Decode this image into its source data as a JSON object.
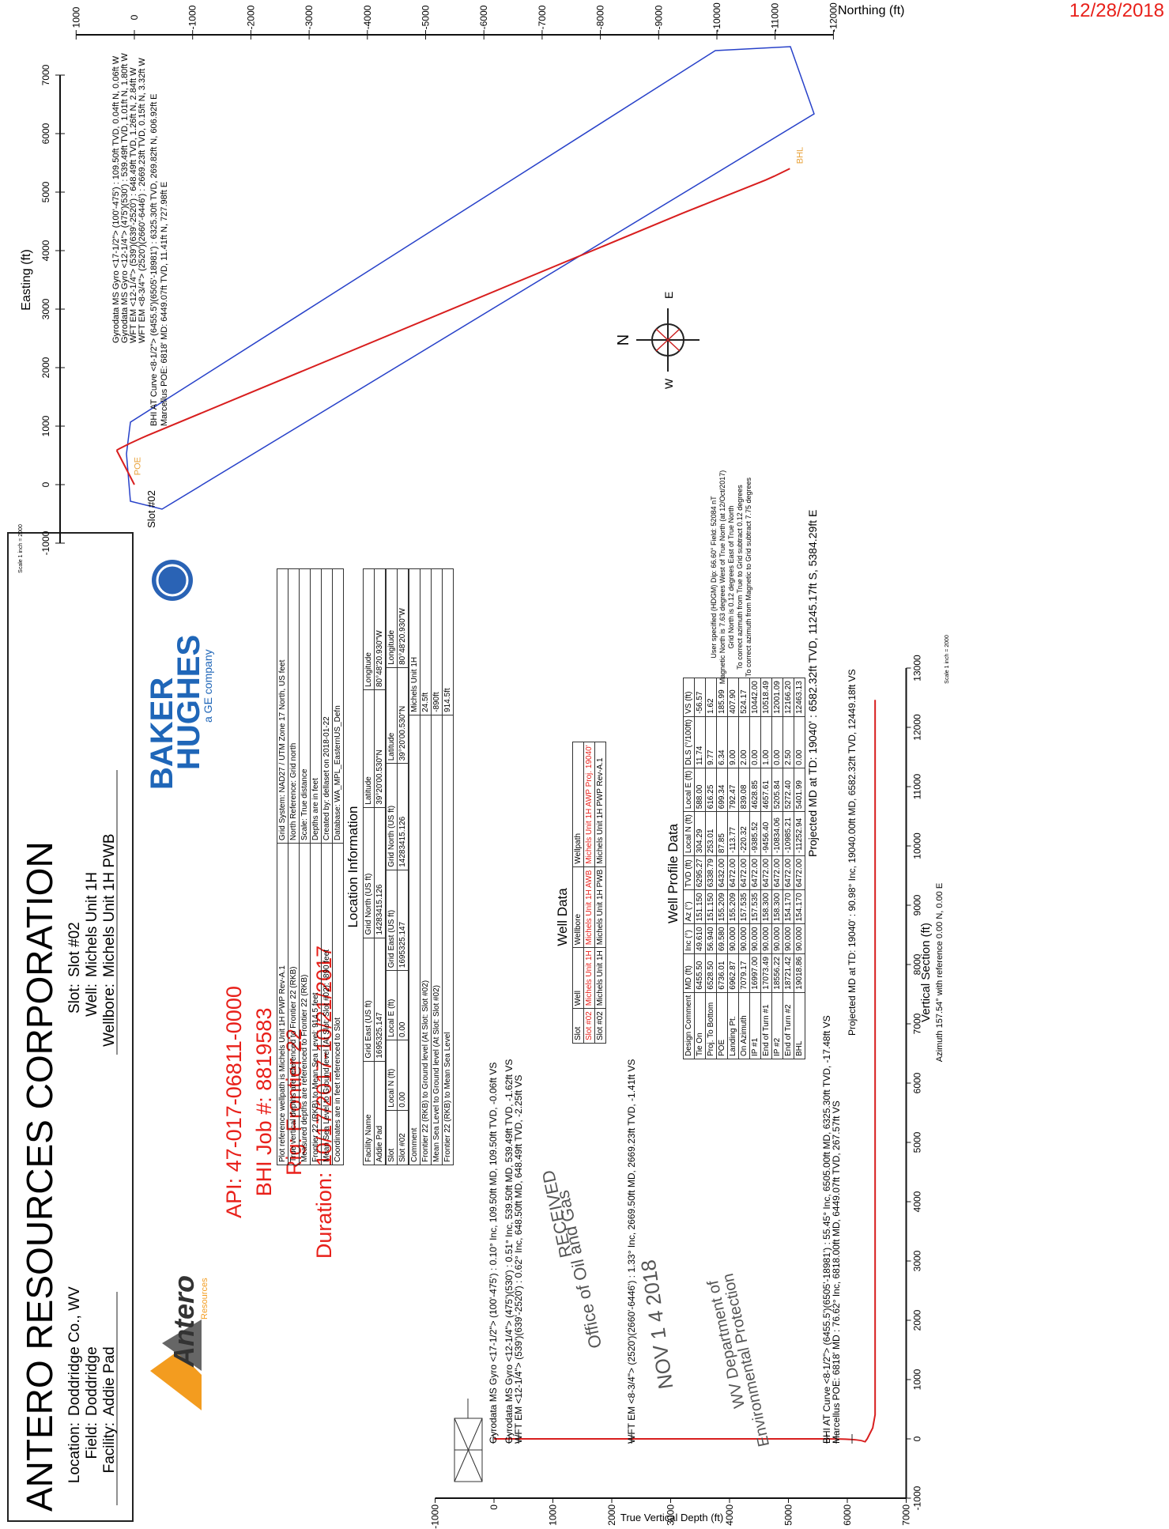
{
  "header": {
    "title": "ANTERO RESOURCES CORPORATION",
    "left": [
      [
        "Location:",
        "Doddridge Co., WV"
      ],
      [
        "Field:",
        "Doddridge"
      ],
      [
        "Facility:",
        "Addie Pad"
      ]
    ],
    "right": [
      [
        "Slot:",
        "Slot #02"
      ],
      [
        "Well:",
        "Michels Unit 1H"
      ],
      [
        "Wellbore:",
        "Michels Unit 1H PWB"
      ]
    ]
  },
  "logos": {
    "antero": [
      "Antero",
      "Resources"
    ],
    "baker_hughes": [
      "BAKER",
      "HUGHES",
      "a GE company"
    ]
  },
  "job": [
    "API: 47-017-06811-0000",
    "BHI Job #: 8819583",
    "Rig: Frontier 22",
    "Duration: 10/17/2017-10/21/2017"
  ],
  "notes_table": [
    [
      "Plot reference wellpath is Michels Unit 1H PWP Rev-A.1",
      "Grid System: NAD27 / UTM Zone 17 North, US feet"
    ],
    [
      "True vertical depths are referenced to Frontier 22 (RKB)",
      "North Reference: Grid north"
    ],
    [
      "Measured depths are referenced to Frontier 22 (RKB)",
      "Scale: True distance"
    ],
    [
      "Frontier 22 (RKB) to Mean Sea Level: 914.5 feet",
      "Depths are in feet"
    ],
    [
      "Mean Sea Level to Ground level (At Slot: Slot #02): -890 feet",
      "Created by: dellaset on 2018-01-22"
    ],
    [
      "Coordinates are in feet referenced to Slot",
      "Database: WA_MPL_EasternUS_Defn"
    ]
  ],
  "location": {
    "title": "Location Information",
    "facility": [
      [
        "Facility Name",
        "Grid East (US ft)",
        "Grid North (US ft)",
        "Latitude",
        "Longitude"
      ],
      [
        "Addie Pad",
        "1695325.147",
        "14283415.126",
        "39°20'00.530\"N",
        "80°48'20.930\"W"
      ]
    ],
    "slot": [
      [
        "Slot",
        "Local N (ft)",
        "Local E (ft)",
        "Grid East (US ft)",
        "Grid North (US ft)",
        "Latitude",
        "Longitude"
      ],
      [
        "Slot #02",
        "0.00",
        "0.00",
        "1695325.147",
        "14283415.126",
        "39°20'00.530\"N",
        "80°48'20.930\"W"
      ]
    ],
    "rows": [
      [
        "Comment",
        "Michels Unit 1H"
      ],
      [
        "Frontier 22 (RKB) to Ground level (At Slot: Slot #02)",
        "24.5ft"
      ],
      [
        "Mean Sea Level to Ground level (At Slot: Slot #02)",
        "-890ft"
      ],
      [
        "Frontier 22 (RKB) to Mean Sea Level",
        "914.5ft"
      ]
    ]
  },
  "well_data": {
    "title": "Well Data",
    "rows": [
      [
        "Slot",
        "Well",
        "Wellbore",
        "Wellpath"
      ],
      [
        "Slot #02",
        "Michels Unit 1H",
        "Michels Unit 1H AWB",
        "Michels Unit 1H AWP Proj. 19040'"
      ],
      [
        "Slot #02",
        "Michels Unit 1H",
        "Michels Unit 1H PWB",
        "Michels Unit 1H PWP Rev-A.1"
      ]
    ]
  },
  "well_profile": {
    "title": "Well Profile Data",
    "rows": [
      [
        "Design Comment",
        "MD (ft)",
        "Inc (°)",
        "Az (°)",
        "TVD (ft)",
        "Local N (ft)",
        "Local E (ft)",
        "DLS (°/100ft)",
        "VS (ft)"
      ],
      [
        "Tie On",
        "6455.50",
        "49.610",
        "151.150",
        "6295.27",
        "304.29",
        "588.00",
        "11.74",
        "-56.57"
      ],
      [
        "Proj. To Bottom",
        "6528.50",
        "56.940",
        "151.150",
        "6338.79",
        "253.01",
        "616.25",
        "9.77",
        "1.62"
      ],
      [
        "POE",
        "6736.01",
        "69.580",
        "155.209",
        "6432.00",
        "87.85",
        "699.34",
        "6.34",
        "185.99"
      ],
      [
        "Landing Pt.",
        "6962.87",
        "90.000",
        "155.209",
        "6472.00",
        "-113.77",
        "792.47",
        "9.00",
        "407.90"
      ],
      [
        "On Azimuth",
        "7079.17",
        "90.000",
        "157.535",
        "6472.00",
        "-220.32",
        "839.08",
        "2.00",
        "524.17"
      ],
      [
        "IP #1",
        "16997.00",
        "90.000",
        "157.535",
        "6472.00",
        "-9385.52",
        "4628.85",
        "0.00",
        "10442.00"
      ],
      [
        "End of Turn #1",
        "17073.49",
        "90.000",
        "158.300",
        "6472.00",
        "-9456.40",
        "4657.61",
        "1.00",
        "10518.49"
      ],
      [
        "IP #2",
        "18556.22",
        "90.000",
        "158.300",
        "6472.00",
        "-10834.06",
        "5205.84",
        "0.00",
        "12001.09"
      ],
      [
        "End of Turn #2",
        "18721.42",
        "90.000",
        "154.170",
        "6472.00",
        "-10985.21",
        "5272.40",
        "2.50",
        "12166.20"
      ],
      [
        "BHL",
        "19018.86",
        "90.000",
        "154.170",
        "6472.00",
        "-11252.94",
        "5401.99",
        "0.00",
        "12463.13"
      ]
    ]
  },
  "vertical_section": {
    "xlabel": "Vertical Section (ft)",
    "subtitle": "Azimuth 157.54° with reference 0.00 N, 0.00 E",
    "ylabel": "True Vertical Depth (ft)",
    "scale": "Scale 1 inch = 2000",
    "xticks": [
      -1000,
      0,
      1000,
      2000,
      3000,
      4000,
      5000,
      6000,
      7000,
      8000,
      9000,
      10000,
      11000,
      12000,
      13000
    ],
    "yticks": [
      -1000,
      0,
      1000,
      2000,
      3000,
      4000,
      5000,
      6000,
      7000
    ],
    "annotations": [
      "Gyrodata MS Gyro <17-1/2\"> (100'-475') : 0.10° Inc, 109.50ft MD, 109.50ft TVD, -0.06ft VS",
      "Gyrodata MS Gyro <12-1/4\"> (475')(530') : 0.51° Inc, 539.50ft MD, 539.49ft TVD, -1.62ft VS",
      "WFT EM <12-1/4\"> (539')(639'-2520') : 0.62° Inc, 648.50ft MD, 648.49ft TVD, -2.25ft VS",
      "WFT EM <8-3/4\"> (2520')(2660'-6446') : 1.33° Inc, 2669.50ft MD, 2669.23ft TVD, -1.41ft VS",
      "BHI AT Curve <8-1/2\"> (6455.5')(6505'-18981') : 55.45° Inc, 6505.00ft MD, 6325.30ft TVD, -17.48ft VS",
      "Marcellus POE: 6818' MD : 76.62° Inc, 6818.00ft MD, 6449.07ft TVD, 267.57ft VS",
      "Projected MD at TD: 19040' : 90.98° Inc, 19040.00ft MD, 6582.32ft TVD, 12449.18ft VS"
    ]
  },
  "plan_view": {
    "xlabel": "Easting (ft)",
    "ylabel": "Northing (ft)",
    "scale": "Scale 1 inch = 2000",
    "xticks": [
      -1000,
      0,
      1000,
      2000,
      3000,
      4000,
      5000,
      6000,
      7000
    ],
    "yticks": [
      1000,
      0,
      -1000,
      -2000,
      -3000,
      -4000,
      -5000,
      -6000,
      -7000,
      -8000,
      -9000,
      -10000,
      -11000,
      -12000
    ],
    "slot": "Slot #02",
    "targets": [
      "POE",
      "BHL"
    ],
    "annotations": [
      "Gyrodata MS Gyro <17-1/2\"> (100'-475') : 109.50ft TVD, 0.04ft N, 0.06ft W",
      "Gyrodata MS Gyro <12-1/4\"> (475')(530') : 539.49ft TVD, 1.01ft N, 1.80ft W",
      "WFT EM <12-1/4\"> (539')(639'-2520') : 648.49ft TVD, 1.26ft N, 2.84ft W",
      "WFT EM <8-3/4\"> (2520')(2660'-6446') : 2669.23ft TVD, 0.15ft N, 3.32ft W",
      "BHI AT Curve <8-1/2\"> (6455.5')(6505'-18981') : 6325.30ft TVD, 269.82ft N, 606.92ft E",
      "Marcellus POE: 6818' MD: 6449.07ft TVD, 11.41ft N, 727.98ft E"
    ],
    "projected": "Projected MD at TD: 19040' : 6582.32ft TVD, 11245.17ft S, 5384.29ft E"
  },
  "compass": [
    "N",
    "E",
    "W"
  ],
  "magnetic": [
    "User specified (HDGM) Dip: 66.60° Field: 52084 nT",
    "Magnetic North is 7.63 degrees West of True North (at 12/Oct/2017)",
    "Grid North is 0.12 degrees East of True North",
    "To correct azimuth from True to Grid subtract 0.12 degrees",
    "To correct azimuth from Magnetic to Grid subtract 7.75 degrees"
  ],
  "stamp": [
    "RECEIVED",
    "Office of Oil and Gas",
    "NOV 1 4 2018",
    "WV Department of",
    "Environmental Protection"
  ],
  "date": "12/28/2018"
}
